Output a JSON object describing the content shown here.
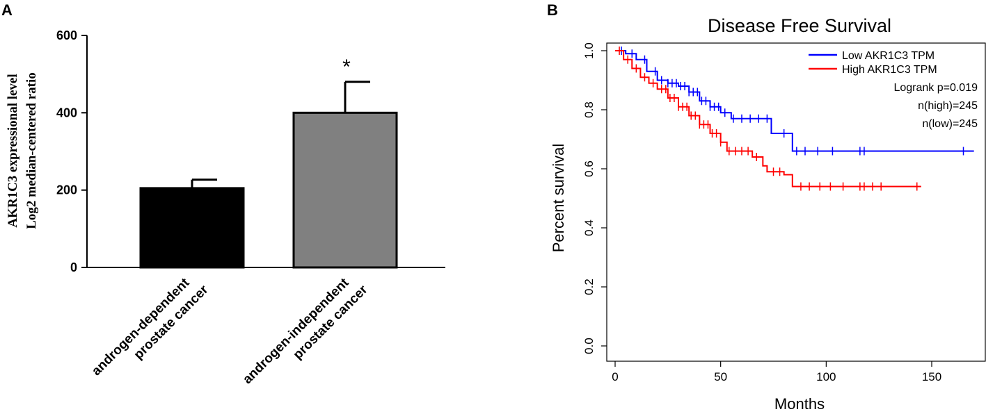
{
  "chart_data": [
    {
      "panel": "A",
      "type": "bar",
      "title": "",
      "ylabel_line1": "AKR1C3 expressional level",
      "ylabel_line2": "Log2 median-centered ratio",
      "xlabel": "",
      "ylim": [
        0,
        600
      ],
      "yticks": [
        "0",
        "200",
        "400",
        "600"
      ],
      "categories": [
        {
          "line1": "androgen-dependent",
          "line2": "prostate cancer"
        },
        {
          "line1": "androgen-independent",
          "line2": "prostate cancer"
        }
      ],
      "values": [
        205,
        400
      ],
      "errors": [
        22,
        80
      ],
      "colors": [
        "#000000",
        "#808080"
      ],
      "significance": [
        "",
        "*"
      ]
    },
    {
      "panel": "B",
      "type": "line",
      "title": "Disease Free Survival",
      "xlabel": "Months",
      "ylabel": "Percent survival",
      "xlim": [
        0,
        170
      ],
      "ylim": [
        0,
        1
      ],
      "xticks": [
        "0",
        "50",
        "100",
        "150"
      ],
      "yticks": [
        "0.0",
        "0.2",
        "0.4",
        "0.6",
        "0.8",
        "1.0"
      ],
      "legend_position": "top-right",
      "annotations": [
        "Logrank p=0.019",
        "n(high)=245",
        "n(low)=245"
      ],
      "series": [
        {
          "name": "Low AKR1C3 TPM",
          "color": "#0000ff",
          "x": [
            0,
            5,
            10,
            15,
            20,
            25,
            30,
            35,
            40,
            45,
            50,
            55,
            60,
            65,
            70,
            74,
            80,
            84,
            90,
            100,
            120,
            150,
            170
          ],
          "y": [
            1.0,
            0.99,
            0.97,
            0.93,
            0.9,
            0.89,
            0.88,
            0.86,
            0.83,
            0.81,
            0.79,
            0.77,
            0.77,
            0.77,
            0.77,
            0.72,
            0.72,
            0.66,
            0.66,
            0.66,
            0.66,
            0.66,
            0.66
          ],
          "censor_x": [
            3,
            8,
            14,
            19,
            22,
            25,
            27,
            29,
            31,
            33,
            35,
            37,
            39,
            41,
            43,
            45,
            47,
            49,
            52,
            56,
            60,
            64,
            68,
            72,
            80,
            86,
            90,
            96,
            103,
            116,
            118,
            165
          ]
        },
        {
          "name": "High AKR1C3 TPM",
          "color": "#ff0000",
          "x": [
            0,
            4,
            8,
            12,
            16,
            20,
            25,
            30,
            35,
            40,
            45,
            50,
            53,
            60,
            65,
            70,
            72,
            80,
            84,
            100,
            120,
            145
          ],
          "y": [
            1.0,
            0.97,
            0.94,
            0.91,
            0.89,
            0.87,
            0.84,
            0.81,
            0.78,
            0.75,
            0.72,
            0.69,
            0.66,
            0.66,
            0.64,
            0.61,
            0.59,
            0.58,
            0.54,
            0.54,
            0.54,
            0.54
          ],
          "censor_x": [
            2,
            6,
            10,
            14,
            18,
            22,
            24,
            26,
            28,
            30,
            32,
            34,
            36,
            38,
            40,
            42,
            44,
            46,
            48,
            50,
            54,
            57,
            60,
            63,
            67,
            75,
            78,
            88,
            92,
            97,
            102,
            108,
            116,
            118,
            122,
            126,
            143
          ]
        }
      ]
    }
  ]
}
